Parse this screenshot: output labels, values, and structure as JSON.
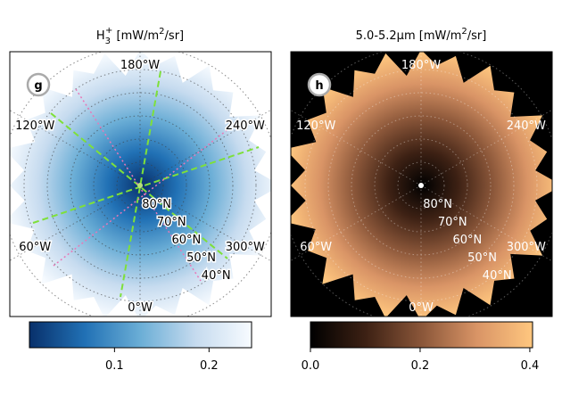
{
  "chart_data": [
    {
      "type": "polar-heatmap",
      "panel_label": "g",
      "title": {
        "text": "H",
        "sub": "3",
        "sup": "+",
        "unit": "  [mW/m",
        "unit_sup": "2",
        "unit_end": "/sr]"
      },
      "colormap": [
        "#08306b",
        "#2171b5",
        "#6baed6",
        "#c6dbef",
        "#f7fbff"
      ],
      "clim": [
        0.01,
        0.245
      ],
      "cticks": [
        0.1,
        0.2
      ],
      "lon_ticks": [
        {
          "value": 0,
          "label": "0°W"
        },
        {
          "value": 60,
          "label": "60°W"
        },
        {
          "value": 120,
          "label": "120°W"
        },
        {
          "value": 180,
          "label": "180°W"
        },
        {
          "value": 240,
          "label": "240°W"
        },
        {
          "value": 300,
          "label": "300°W"
        }
      ],
      "lat_ticks": [
        {
          "value": 80,
          "label": "80°N"
        },
        {
          "value": 70,
          "label": "70°N"
        },
        {
          "value": 60,
          "label": "60°N"
        },
        {
          "value": 50,
          "label": "50°N"
        },
        {
          "value": 40,
          "label": "40°N"
        }
      ],
      "rlim": [
        90,
        30
      ],
      "label_color": "#000000"
    },
    {
      "type": "polar-heatmap",
      "panel_label": "h",
      "title": {
        "text": "5.0-5.2μm",
        "unit": " [mW/m",
        "unit_sup": "2",
        "unit_end": "/sr]"
      },
      "colormap": [
        "#000000",
        "#3d2114",
        "#8a5639",
        "#d99466",
        "#ffc77f"
      ],
      "clim": [
        0,
        0.405
      ],
      "cticks": [
        {
          "value": 0,
          "label": "0.0"
        },
        0.2,
        0.4
      ],
      "lon_ticks": [
        {
          "value": 0,
          "label": "0°W"
        },
        {
          "value": 60,
          "label": "60°W"
        },
        {
          "value": 120,
          "label": "120°W"
        },
        {
          "value": 180,
          "label": "180°W"
        },
        {
          "value": 240,
          "label": "240°W"
        },
        {
          "value": 300,
          "label": "300°W"
        }
      ],
      "lat_ticks": [
        {
          "value": 80,
          "label": "80°N"
        },
        {
          "value": 70,
          "label": "70°N"
        },
        {
          "value": 60,
          "label": "60°N"
        },
        {
          "value": 50,
          "label": "50°N"
        },
        {
          "value": 40,
          "label": "40°N"
        }
      ],
      "rlim": [
        90,
        30
      ],
      "label_color": "#ffffff"
    }
  ]
}
